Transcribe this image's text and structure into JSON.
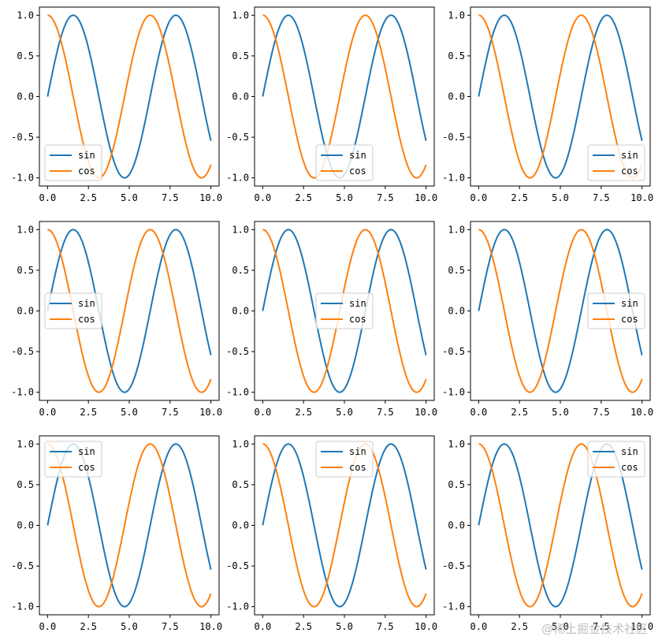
{
  "colors": {
    "sin": "#1f77b4",
    "cos": "#ff7f0e",
    "axis": "#000000",
    "legend_border": "#cccccc"
  },
  "watermark": "@稀土掘金技术社区",
  "chart_data": [
    {
      "type": "line",
      "legend": "lower-left",
      "x_range": [
        0,
        10
      ],
      "ylim": [
        -1.1,
        1.1
      ],
      "xticks": [
        "0.0",
        "2.5",
        "5.0",
        "7.5",
        "10.0"
      ],
      "yticks": [
        "-1.0",
        "-0.5",
        "0.0",
        "0.5",
        "1.0"
      ],
      "series": [
        {
          "name": "sin",
          "function": "sin(x)"
        },
        {
          "name": "cos",
          "function": "cos(x)"
        }
      ]
    },
    {
      "type": "line",
      "legend": "lower-center",
      "x_range": [
        0,
        10
      ],
      "ylim": [
        -1.1,
        1.1
      ],
      "xticks": [
        "0.0",
        "2.5",
        "5.0",
        "7.5",
        "10.0"
      ],
      "yticks": [
        "-1.0",
        "-0.5",
        "0.0",
        "0.5",
        "1.0"
      ],
      "series": [
        {
          "name": "sin",
          "function": "sin(x)"
        },
        {
          "name": "cos",
          "function": "cos(x)"
        }
      ]
    },
    {
      "type": "line",
      "legend": "lower-right",
      "x_range": [
        0,
        10
      ],
      "ylim": [
        -1.1,
        1.1
      ],
      "xticks": [
        "0.0",
        "2.5",
        "5.0",
        "7.5",
        "10.0"
      ],
      "yticks": [
        "-1.0",
        "-0.5",
        "0.0",
        "0.5",
        "1.0"
      ],
      "series": [
        {
          "name": "sin",
          "function": "sin(x)"
        },
        {
          "name": "cos",
          "function": "cos(x)"
        }
      ]
    },
    {
      "type": "line",
      "legend": "center-left",
      "x_range": [
        0,
        10
      ],
      "ylim": [
        -1.1,
        1.1
      ],
      "xticks": [
        "0.0",
        "2.5",
        "5.0",
        "7.5",
        "10.0"
      ],
      "yticks": [
        "-1.0",
        "-0.5",
        "0.0",
        "0.5",
        "1.0"
      ],
      "series": [
        {
          "name": "sin",
          "function": "sin(x)"
        },
        {
          "name": "cos",
          "function": "cos(x)"
        }
      ]
    },
    {
      "type": "line",
      "legend": "center",
      "x_range": [
        0,
        10
      ],
      "ylim": [
        -1.1,
        1.1
      ],
      "xticks": [
        "0.0",
        "2.5",
        "5.0",
        "7.5",
        "10.0"
      ],
      "yticks": [
        "-1.0",
        "-0.5",
        "0.0",
        "0.5",
        "1.0"
      ],
      "series": [
        {
          "name": "sin",
          "function": "sin(x)"
        },
        {
          "name": "cos",
          "function": "cos(x)"
        }
      ]
    },
    {
      "type": "line",
      "legend": "center-right",
      "x_range": [
        0,
        10
      ],
      "ylim": [
        -1.1,
        1.1
      ],
      "xticks": [
        "0.0",
        "2.5",
        "5.0",
        "7.5",
        "10.0"
      ],
      "yticks": [
        "-1.0",
        "-0.5",
        "0.0",
        "0.5",
        "1.0"
      ],
      "series": [
        {
          "name": "sin",
          "function": "sin(x)"
        },
        {
          "name": "cos",
          "function": "cos(x)"
        }
      ]
    },
    {
      "type": "line",
      "legend": "upper-left",
      "x_range": [
        0,
        10
      ],
      "ylim": [
        -1.1,
        1.1
      ],
      "xticks": [
        "0.0",
        "2.5",
        "5.0",
        "7.5",
        "10.0"
      ],
      "yticks": [
        "-1.0",
        "-0.5",
        "0.0",
        "0.5",
        "1.0"
      ],
      "series": [
        {
          "name": "sin",
          "function": "sin(x)"
        },
        {
          "name": "cos",
          "function": "cos(x)"
        }
      ]
    },
    {
      "type": "line",
      "legend": "upper-center",
      "x_range": [
        0,
        10
      ],
      "ylim": [
        -1.1,
        1.1
      ],
      "xticks": [
        "0.0",
        "2.5",
        "5.0",
        "7.5",
        "10.0"
      ],
      "yticks": [
        "-1.0",
        "-0.5",
        "0.0",
        "0.5",
        "1.0"
      ],
      "series": [
        {
          "name": "sin",
          "function": "sin(x)"
        },
        {
          "name": "cos",
          "function": "cos(x)"
        }
      ]
    },
    {
      "type": "line",
      "legend": "upper-right",
      "x_range": [
        0,
        10
      ],
      "ylim": [
        -1.1,
        1.1
      ],
      "xticks": [
        "0.0",
        "2.5",
        "5.0",
        "7.5",
        "10.0"
      ],
      "yticks": [
        "-1.0",
        "-0.5",
        "0.0",
        "0.5",
        "1.0"
      ],
      "series": [
        {
          "name": "sin",
          "function": "sin(x)"
        },
        {
          "name": "cos",
          "function": "cos(x)"
        }
      ]
    }
  ]
}
